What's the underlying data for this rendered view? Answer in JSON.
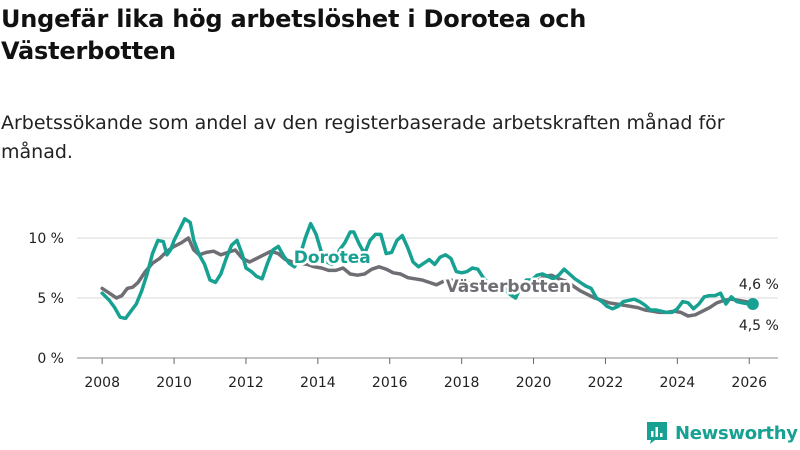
{
  "title": "Ungefär lika hög arbetslöshet i Dorotea och Västerbotten",
  "subtitle": "Arbetssökande som andel av den registerbaserade arbetskraften månad för månad.",
  "brand": "Newsworthy",
  "chart_data": {
    "type": "line",
    "xlabel": "",
    "ylabel": "",
    "xlim": [
      2007.3,
      2026.8
    ],
    "ylim": [
      0,
      10
    ],
    "x_ticks": [
      2008,
      2010,
      2012,
      2014,
      2016,
      2018,
      2020,
      2022,
      2024,
      2026
    ],
    "y_ticks": [
      0,
      5,
      10
    ],
    "y_tick_labels": [
      "0 %",
      "5 %",
      "10 %"
    ],
    "grid": true,
    "series": [
      {
        "name": "Dorotea",
        "color": "#17a192",
        "end_label": "4,5 %",
        "points": [
          [
            2008.0,
            5.4
          ],
          [
            2008.2,
            4.8
          ],
          [
            2008.35,
            4.2
          ],
          [
            2008.5,
            3.4
          ],
          [
            2008.65,
            3.3
          ],
          [
            2008.8,
            3.9
          ],
          [
            2008.95,
            4.5
          ],
          [
            2009.1,
            5.6
          ],
          [
            2009.25,
            7.0
          ],
          [
            2009.4,
            8.7
          ],
          [
            2009.55,
            9.8
          ],
          [
            2009.7,
            9.7
          ],
          [
            2009.8,
            8.6
          ],
          [
            2009.9,
            9.0
          ],
          [
            2010.0,
            9.8
          ],
          [
            2010.15,
            10.7
          ],
          [
            2010.3,
            11.6
          ],
          [
            2010.45,
            11.3
          ],
          [
            2010.55,
            9.8
          ],
          [
            2010.7,
            8.6
          ],
          [
            2010.85,
            7.8
          ],
          [
            2011.0,
            6.5
          ],
          [
            2011.15,
            6.3
          ],
          [
            2011.3,
            7.0
          ],
          [
            2011.45,
            8.3
          ],
          [
            2011.6,
            9.4
          ],
          [
            2011.75,
            9.8
          ],
          [
            2011.9,
            8.6
          ],
          [
            2012.0,
            7.5
          ],
          [
            2012.15,
            7.2
          ],
          [
            2012.3,
            6.8
          ],
          [
            2012.45,
            6.6
          ],
          [
            2012.6,
            7.9
          ],
          [
            2012.75,
            9.0
          ],
          [
            2012.9,
            9.3
          ],
          [
            2013.05,
            8.5
          ],
          [
            2013.2,
            7.9
          ],
          [
            2013.35,
            7.6
          ],
          [
            2013.5,
            8.5
          ],
          [
            2013.65,
            10.0
          ],
          [
            2013.8,
            11.2
          ],
          [
            2013.95,
            10.3
          ],
          [
            2014.1,
            8.8
          ],
          [
            2014.25,
            8.0
          ],
          [
            2014.4,
            7.8
          ],
          [
            2014.5,
            8.2
          ],
          [
            2014.6,
            9.0
          ],
          [
            2014.75,
            9.6
          ],
          [
            2014.9,
            10.5
          ],
          [
            2015.0,
            10.5
          ],
          [
            2015.15,
            9.5
          ],
          [
            2015.3,
            8.7
          ],
          [
            2015.45,
            9.8
          ],
          [
            2015.6,
            10.3
          ],
          [
            2015.75,
            10.3
          ],
          [
            2015.9,
            8.7
          ],
          [
            2016.05,
            8.8
          ],
          [
            2016.2,
            9.8
          ],
          [
            2016.35,
            10.2
          ],
          [
            2016.5,
            9.2
          ],
          [
            2016.65,
            8.0
          ],
          [
            2016.8,
            7.6
          ],
          [
            2016.95,
            7.9
          ],
          [
            2017.1,
            8.2
          ],
          [
            2017.25,
            7.8
          ],
          [
            2017.4,
            8.4
          ],
          [
            2017.55,
            8.6
          ],
          [
            2017.7,
            8.3
          ],
          [
            2017.85,
            7.2
          ],
          [
            2018.0,
            7.1
          ],
          [
            2018.15,
            7.2
          ],
          [
            2018.3,
            7.5
          ],
          [
            2018.45,
            7.4
          ],
          [
            2018.6,
            6.7
          ],
          [
            2018.75,
            6.2
          ],
          [
            2018.9,
            5.8
          ],
          [
            2019.05,
            5.9
          ],
          [
            2019.2,
            5.7
          ],
          [
            2019.35,
            5.3
          ],
          [
            2019.5,
            5.0
          ],
          [
            2019.65,
            6.0
          ],
          [
            2019.8,
            6.5
          ],
          [
            2019.95,
            6.5
          ],
          [
            2020.1,
            6.9
          ],
          [
            2020.25,
            7.0
          ],
          [
            2020.4,
            6.8
          ],
          [
            2020.55,
            6.6
          ],
          [
            2020.7,
            6.9
          ],
          [
            2020.85,
            7.4
          ],
          [
            2021.0,
            7.0
          ],
          [
            2021.15,
            6.6
          ],
          [
            2021.3,
            6.3
          ],
          [
            2021.45,
            6.0
          ],
          [
            2021.6,
            5.8
          ],
          [
            2021.75,
            5.0
          ],
          [
            2021.9,
            4.7
          ],
          [
            2022.05,
            4.3
          ],
          [
            2022.2,
            4.1
          ],
          [
            2022.35,
            4.3
          ],
          [
            2022.5,
            4.7
          ],
          [
            2022.65,
            4.8
          ],
          [
            2022.8,
            4.9
          ],
          [
            2022.95,
            4.7
          ],
          [
            2023.1,
            4.4
          ],
          [
            2023.25,
            4.0
          ],
          [
            2023.4,
            4.0
          ],
          [
            2023.55,
            3.9
          ],
          [
            2023.7,
            3.8
          ],
          [
            2023.85,
            3.8
          ],
          [
            2024.0,
            4.1
          ],
          [
            2024.15,
            4.7
          ],
          [
            2024.3,
            4.6
          ],
          [
            2024.45,
            4.1
          ],
          [
            2024.6,
            4.5
          ],
          [
            2024.75,
            5.1
          ],
          [
            2024.9,
            5.2
          ],
          [
            2025.05,
            5.2
          ],
          [
            2025.2,
            5.4
          ],
          [
            2025.35,
            4.5
          ],
          [
            2025.5,
            5.1
          ],
          [
            2025.65,
            4.7
          ],
          [
            2025.8,
            4.6
          ],
          [
            2026.0,
            4.5
          ],
          [
            2026.1,
            4.5
          ]
        ]
      },
      {
        "name": "Västerbotten",
        "color": "#6f6e74",
        "end_label": "4,6 %",
        "points": [
          [
            2008.0,
            5.8
          ],
          [
            2008.2,
            5.4
          ],
          [
            2008.4,
            5.0
          ],
          [
            2008.55,
            5.2
          ],
          [
            2008.7,
            5.8
          ],
          [
            2008.85,
            5.9
          ],
          [
            2009.0,
            6.3
          ],
          [
            2009.2,
            7.2
          ],
          [
            2009.4,
            7.9
          ],
          [
            2009.6,
            8.3
          ],
          [
            2009.8,
            8.9
          ],
          [
            2010.0,
            9.3
          ],
          [
            2010.2,
            9.6
          ],
          [
            2010.4,
            10.0
          ],
          [
            2010.55,
            9.0
          ],
          [
            2010.7,
            8.6
          ],
          [
            2010.9,
            8.8
          ],
          [
            2011.1,
            8.9
          ],
          [
            2011.3,
            8.6
          ],
          [
            2011.5,
            8.8
          ],
          [
            2011.7,
            9.0
          ],
          [
            2011.9,
            8.3
          ],
          [
            2012.1,
            8.0
          ],
          [
            2012.3,
            8.3
          ],
          [
            2012.5,
            8.6
          ],
          [
            2012.7,
            8.9
          ],
          [
            2012.9,
            8.7
          ],
          [
            2013.1,
            8.2
          ],
          [
            2013.3,
            8.0
          ],
          [
            2013.5,
            7.9
          ],
          [
            2013.7,
            7.8
          ],
          [
            2013.9,
            7.6
          ],
          [
            2014.1,
            7.5
          ],
          [
            2014.3,
            7.3
          ],
          [
            2014.5,
            7.3
          ],
          [
            2014.7,
            7.5
          ],
          [
            2014.9,
            7.0
          ],
          [
            2015.1,
            6.9
          ],
          [
            2015.3,
            7.0
          ],
          [
            2015.5,
            7.4
          ],
          [
            2015.7,
            7.6
          ],
          [
            2015.9,
            7.4
          ],
          [
            2016.1,
            7.1
          ],
          [
            2016.3,
            7.0
          ],
          [
            2016.5,
            6.7
          ],
          [
            2016.7,
            6.6
          ],
          [
            2016.9,
            6.5
          ],
          [
            2017.1,
            6.3
          ],
          [
            2017.3,
            6.1
          ],
          [
            2017.5,
            6.4
          ],
          [
            2017.7,
            6.5
          ],
          [
            2017.9,
            6.3
          ],
          [
            2018.1,
            6.2
          ],
          [
            2018.3,
            6.3
          ],
          [
            2018.5,
            6.2
          ],
          [
            2018.7,
            5.9
          ],
          [
            2018.9,
            5.8
          ],
          [
            2019.1,
            5.9
          ],
          [
            2019.3,
            5.8
          ],
          [
            2019.5,
            5.7
          ],
          [
            2019.7,
            6.0
          ],
          [
            2019.9,
            6.2
          ],
          [
            2020.1,
            6.4
          ],
          [
            2020.3,
            6.8
          ],
          [
            2020.5,
            6.9
          ],
          [
            2020.7,
            6.6
          ],
          [
            2020.9,
            6.4
          ],
          [
            2021.1,
            6.0
          ],
          [
            2021.3,
            5.6
          ],
          [
            2021.5,
            5.3
          ],
          [
            2021.7,
            5.0
          ],
          [
            2021.9,
            4.8
          ],
          [
            2022.1,
            4.6
          ],
          [
            2022.3,
            4.5
          ],
          [
            2022.5,
            4.4
          ],
          [
            2022.7,
            4.3
          ],
          [
            2022.9,
            4.2
          ],
          [
            2023.1,
            4.0
          ],
          [
            2023.3,
            3.9
          ],
          [
            2023.5,
            3.8
          ],
          [
            2023.7,
            3.8
          ],
          [
            2023.9,
            3.9
          ],
          [
            2024.1,
            3.8
          ],
          [
            2024.3,
            3.5
          ],
          [
            2024.5,
            3.6
          ],
          [
            2024.7,
            3.9
          ],
          [
            2024.9,
            4.2
          ],
          [
            2025.1,
            4.6
          ],
          [
            2025.3,
            4.8
          ],
          [
            2025.5,
            4.9
          ],
          [
            2025.7,
            4.8
          ],
          [
            2025.9,
            4.7
          ],
          [
            2026.1,
            4.6
          ]
        ]
      }
    ]
  }
}
